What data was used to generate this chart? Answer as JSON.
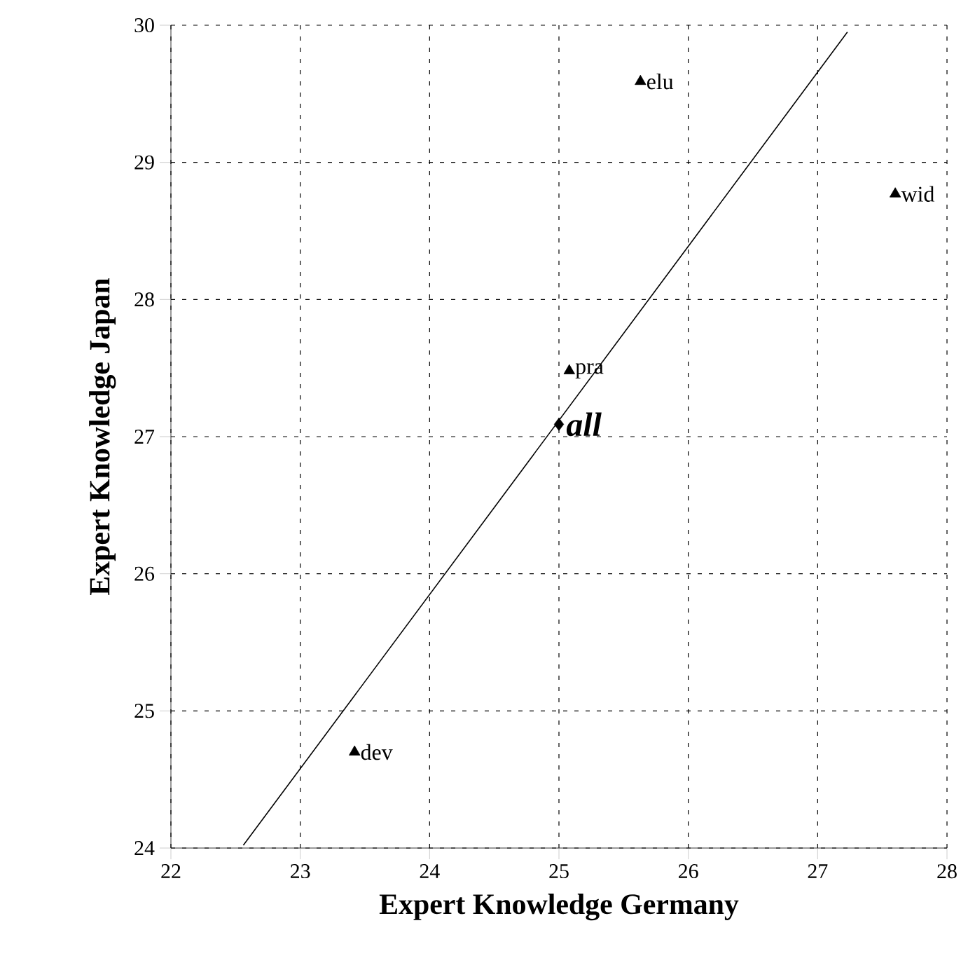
{
  "chart_data": {
    "type": "scatter",
    "xlabel": "Expert Knowledge Germany",
    "ylabel": "Expert Knowledge Japan",
    "xlim": [
      22,
      28
    ],
    "ylim": [
      24,
      30
    ],
    "xticks": [
      22,
      23,
      24,
      25,
      26,
      27,
      28
    ],
    "yticks": [
      24,
      25,
      26,
      27,
      28,
      29,
      30
    ],
    "grid": true,
    "series": [
      {
        "name": "elu",
        "color": "#000000",
        "marker": "triangle",
        "x": [
          25.63
        ],
        "values": [
          29.59
        ]
      },
      {
        "name": "wid",
        "color": "#000000",
        "marker": "triangle",
        "x": [
          27.6
        ],
        "values": [
          28.77
        ]
      },
      {
        "name": "pra",
        "color": "#000000",
        "marker": "triangle",
        "x": [
          25.08
        ],
        "values": [
          27.48
        ]
      },
      {
        "name": "all",
        "color": "#000000",
        "marker": "diamond",
        "x": [
          25.0
        ],
        "values": [
          27.09
        ]
      },
      {
        "name": "dev",
        "color": "#000000",
        "marker": "triangle",
        "x": [
          23.42
        ],
        "values": [
          24.7
        ]
      },
      {
        "type": "line",
        "color": "#000000",
        "marker": "none",
        "x": [
          22.56,
          27.23
        ],
        "values": [
          24.02,
          29.95
        ]
      }
    ]
  }
}
